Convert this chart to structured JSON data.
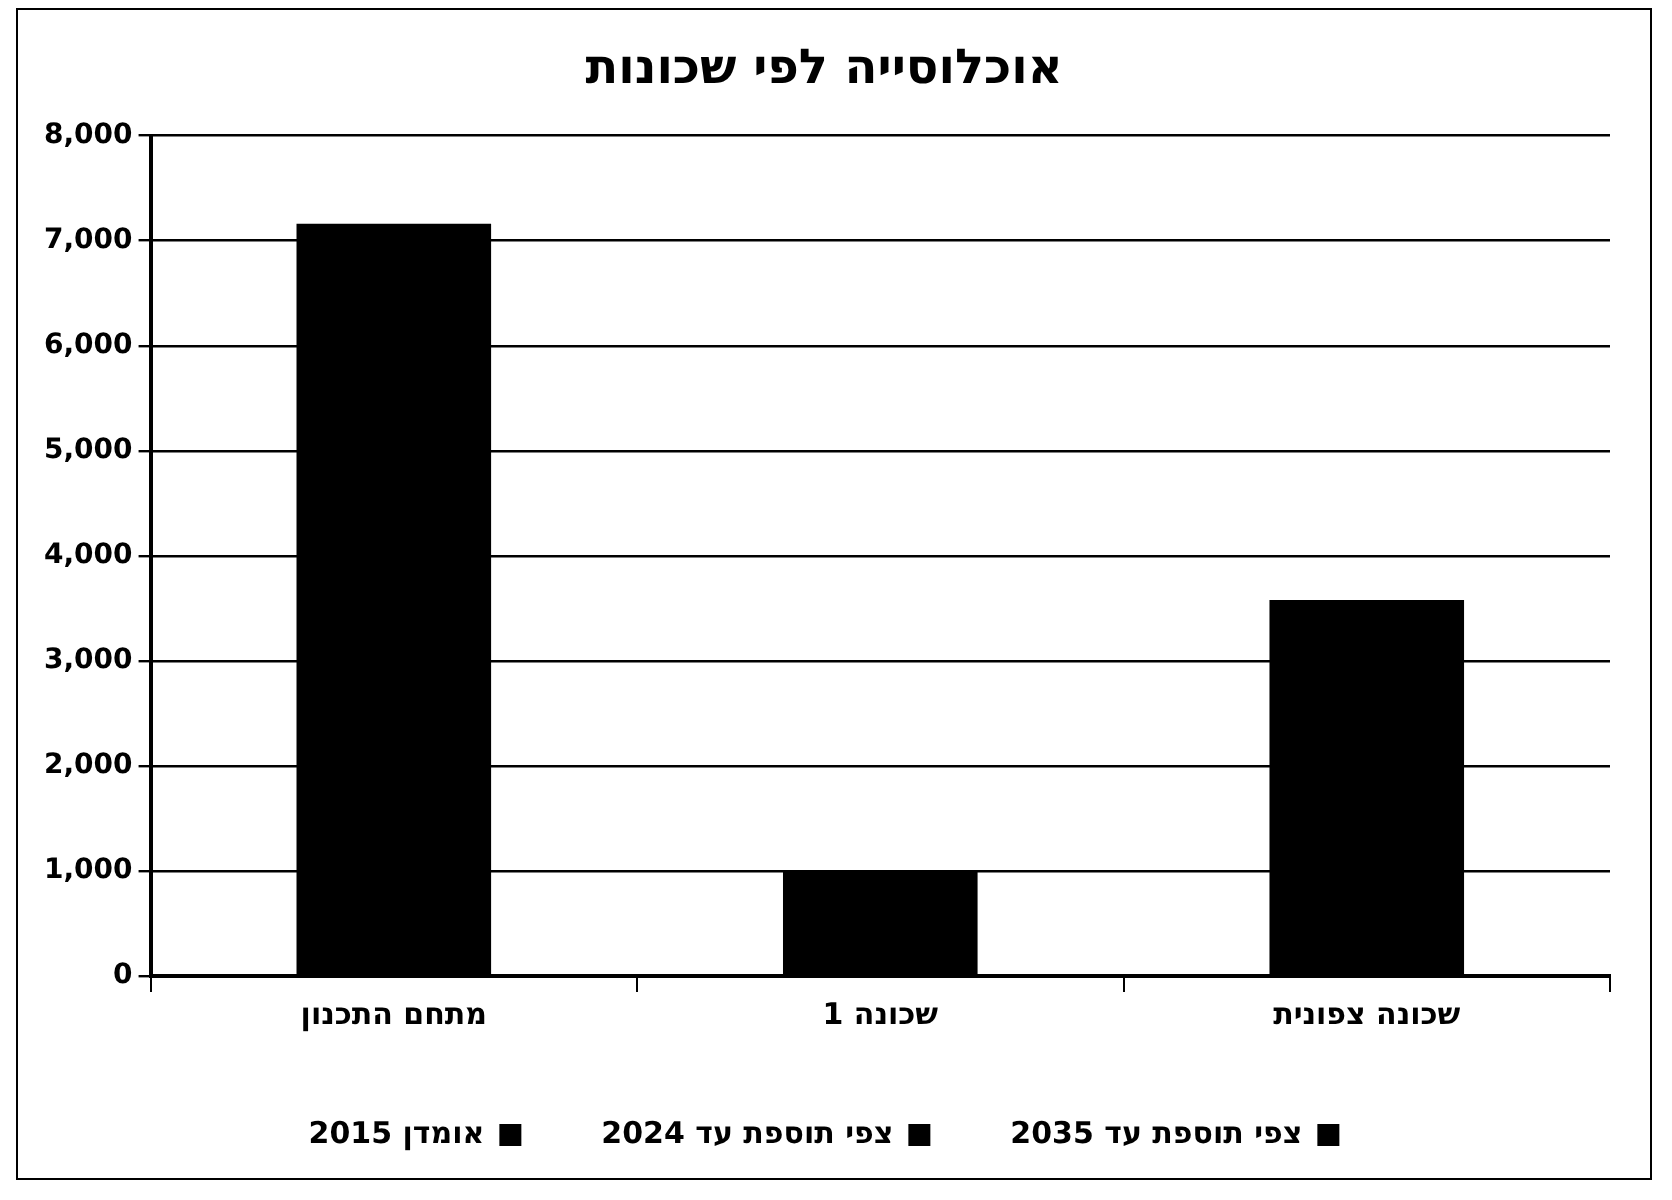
{
  "chart_data": {
    "type": "bar",
    "title": "אוכלוסייה לפי שכונות",
    "categories": [
      "מתחם התכנון",
      "שכונה 1",
      "שכונה צפונית"
    ],
    "series": [
      {
        "name": "אומדן 2015",
        "color": "#000000",
        "values": [
          7160,
          1000,
          3580
        ]
      },
      {
        "name": "צפי תוספת עד 2024",
        "color": "#000000",
        "values": [
          null,
          null,
          null
        ]
      },
      {
        "name": "צפי תוספת עד 2035",
        "color": "#000000",
        "values": [
          null,
          null,
          null
        ]
      }
    ],
    "stacked": true,
    "ylim": [
      0,
      8000
    ],
    "yticks": [
      0,
      {
        "value": 1000,
        "label": "1,000"
      },
      {
        "value": 2000,
        "label": "2,000"
      },
      {
        "value": 3000,
        "label": "3,000"
      },
      {
        "value": 4000,
        "label": "4,000"
      },
      {
        "value": 5000,
        "label": "5,000"
      },
      {
        "value": 6000,
        "label": "6,000"
      },
      {
        "value": 7000,
        "label": "7,000"
      },
      {
        "value": 8000,
        "label": "8,000"
      }
    ],
    "grid": "y",
    "legend": "bottom"
  }
}
